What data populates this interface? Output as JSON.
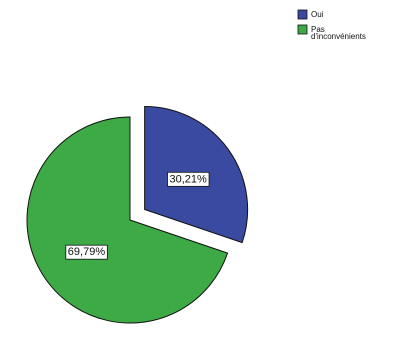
{
  "chart_data": {
    "type": "pie",
    "slices": [
      {
        "label": "Oui",
        "value": 30.21,
        "value_label": "30,21%",
        "color": "#3a4aa0",
        "exploded": true
      },
      {
        "label": "Pas d'inconvénients",
        "legend_lines": [
          "Pas",
          "d'inconvénients"
        ],
        "value": 69.79,
        "value_label": "69,79%",
        "color": "#3daa45",
        "exploded": false
      }
    ],
    "legend_placement": "top-right",
    "label_box_color": "#ffffff",
    "slice_border_color": "#111111"
  }
}
